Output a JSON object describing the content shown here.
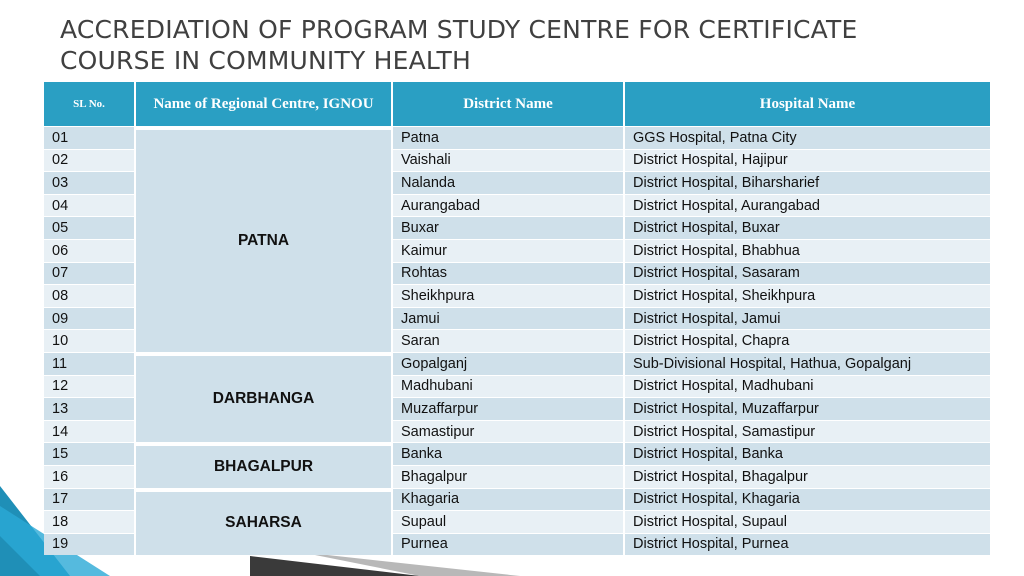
{
  "title": "ACCREDIATION OF PROGRAM STUDY CENTRE FOR CERTIFICATE COURSE IN COMMUNITY HEALTH",
  "colors": {
    "header": "#2a9fc3",
    "row_dark": "#cfe0ea",
    "row_light": "#e8f0f5",
    "title_text": "#404040"
  },
  "table": {
    "headers": {
      "sl_no": "SL No.",
      "regional_centre": "Name of Regional Centre, IGNOU",
      "district": "District Name",
      "hospital": "Hospital Name"
    },
    "rows": [
      {
        "sl": "01",
        "district": "Patna",
        "hospital": "GGS Hospital, Patna City"
      },
      {
        "sl": "02",
        "district": "Vaishali",
        "hospital": "District Hospital, Hajipur"
      },
      {
        "sl": "03",
        "district": "Nalanda",
        "hospital": "District Hospital, Biharsharief"
      },
      {
        "sl": "04",
        "district": "Aurangabad",
        "hospital": "District Hospital, Aurangabad"
      },
      {
        "sl": "05",
        "district": "Buxar",
        "hospital": "District Hospital, Buxar"
      },
      {
        "sl": "06",
        "district": "Kaimur",
        "hospital": "District Hospital, Bhabhua"
      },
      {
        "sl": "07",
        "district": "Rohtas",
        "hospital": "District Hospital,  Sasaram"
      },
      {
        "sl": "08",
        "district": "Sheikhpura",
        "hospital": "District Hospital, Sheikhpura"
      },
      {
        "sl": "09",
        "district": "Jamui",
        "hospital": "District Hospital,  Jamui"
      },
      {
        "sl": "10",
        "district": "Saran",
        "hospital": "District Hospital,  Chapra"
      },
      {
        "sl": "11",
        "district": "Gopalganj",
        "hospital": "Sub-Divisional Hospital, Hathua, Gopalganj"
      },
      {
        "sl": "12",
        "district": "Madhubani",
        "hospital": "District Hospital, Madhubani"
      },
      {
        "sl": "13",
        "district": "Muzaffarpur",
        "hospital": "District Hospital,  Muzaffarpur"
      },
      {
        "sl": "14",
        "district": "Samastipur",
        "hospital": "District Hospital,  Samastipur"
      },
      {
        "sl": "15",
        "district": "Banka",
        "hospital": "District Hospital, Banka"
      },
      {
        "sl": "16",
        "district": "Bhagalpur",
        "hospital": "District Hospital, Bhagalpur"
      },
      {
        "sl": "17",
        "district": "Khagaria",
        "hospital": "District Hospital,  Khagaria"
      },
      {
        "sl": "18",
        "district": "Supaul",
        "hospital": "District Hospital, Supaul"
      },
      {
        "sl": "19",
        "district": "Purnea",
        "hospital": "District Hospital,  Purnea"
      }
    ],
    "centres": [
      {
        "name": "PATNA",
        "span": 10
      },
      {
        "name": "DARBHANGA",
        "span": 4
      },
      {
        "name": "BHAGALPUR",
        "span": 2
      },
      {
        "name": "SAHARSA",
        "span": 3
      }
    ]
  }
}
